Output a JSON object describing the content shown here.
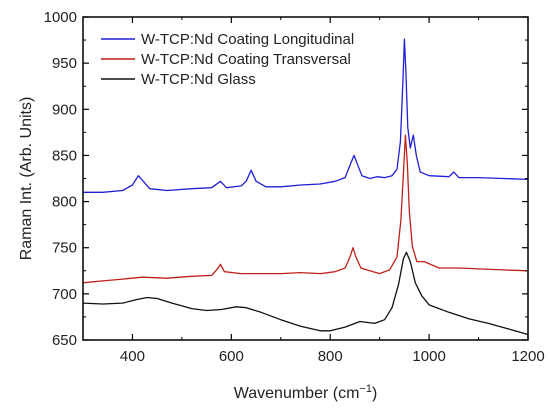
{
  "chart_data": {
    "type": "line",
    "xlabel": "Wavenumber (cm",
    "xlabel_sup": "−1",
    "xlabel_close": ")",
    "ylabel": "Raman Int. (Arb. Units)",
    "xlim": [
      300,
      1200
    ],
    "ylim": [
      650,
      1000
    ],
    "xticks": [
      400,
      600,
      800,
      1000,
      1200
    ],
    "yticks": [
      650,
      700,
      750,
      800,
      850,
      900,
      950,
      1000
    ],
    "grid": false,
    "legend_position": "top-left",
    "series": [
      {
        "name": "W-TCP:Nd Coating Longitudinal",
        "color": "#1f1fd6",
        "points": [
          [
            300,
            810
          ],
          [
            340,
            810
          ],
          [
            380,
            812
          ],
          [
            400,
            818
          ],
          [
            412,
            828
          ],
          [
            422,
            822
          ],
          [
            435,
            814
          ],
          [
            470,
            812
          ],
          [
            520,
            814
          ],
          [
            560,
            815
          ],
          [
            578,
            822
          ],
          [
            590,
            815
          ],
          [
            620,
            817
          ],
          [
            630,
            822
          ],
          [
            640,
            834
          ],
          [
            650,
            822
          ],
          [
            670,
            816
          ],
          [
            700,
            816
          ],
          [
            740,
            818
          ],
          [
            780,
            819
          ],
          [
            810,
            822
          ],
          [
            830,
            826
          ],
          [
            842,
            842
          ],
          [
            848,
            850
          ],
          [
            854,
            842
          ],
          [
            864,
            828
          ],
          [
            880,
            825
          ],
          [
            895,
            827
          ],
          [
            910,
            826
          ],
          [
            925,
            828
          ],
          [
            935,
            835
          ],
          [
            942,
            865
          ],
          [
            947,
            930
          ],
          [
            950,
            976
          ],
          [
            953,
            940
          ],
          [
            957,
            880
          ],
          [
            962,
            858
          ],
          [
            968,
            872
          ],
          [
            974,
            850
          ],
          [
            982,
            832
          ],
          [
            1000,
            828
          ],
          [
            1040,
            827
          ],
          [
            1050,
            832
          ],
          [
            1060,
            826
          ],
          [
            1100,
            826
          ],
          [
            1150,
            825
          ],
          [
            1200,
            824
          ]
        ]
      },
      {
        "name": "W-TCP:Nd Coating Transversal",
        "color": "#c0201a",
        "points": [
          [
            300,
            712
          ],
          [
            340,
            714
          ],
          [
            380,
            716
          ],
          [
            420,
            718
          ],
          [
            470,
            717
          ],
          [
            520,
            719
          ],
          [
            560,
            720
          ],
          [
            572,
            727
          ],
          [
            578,
            732
          ],
          [
            586,
            724
          ],
          [
            620,
            722
          ],
          [
            660,
            722
          ],
          [
            700,
            722
          ],
          [
            740,
            723
          ],
          [
            780,
            722
          ],
          [
            810,
            724
          ],
          [
            830,
            728
          ],
          [
            840,
            740
          ],
          [
            846,
            750
          ],
          [
            852,
            740
          ],
          [
            862,
            728
          ],
          [
            880,
            725
          ],
          [
            900,
            722
          ],
          [
            920,
            726
          ],
          [
            935,
            740
          ],
          [
            943,
            780
          ],
          [
            948,
            830
          ],
          [
            952,
            872
          ],
          [
            956,
            840
          ],
          [
            960,
            790
          ],
          [
            966,
            752
          ],
          [
            975,
            735
          ],
          [
            990,
            735
          ],
          [
            1020,
            728
          ],
          [
            1060,
            728
          ],
          [
            1100,
            727
          ],
          [
            1150,
            726
          ],
          [
            1200,
            725
          ]
        ]
      },
      {
        "name": "W-TCP:Nd Glass",
        "color": "#111111",
        "points": [
          [
            300,
            690
          ],
          [
            340,
            689
          ],
          [
            380,
            690
          ],
          [
            410,
            694
          ],
          [
            430,
            696
          ],
          [
            450,
            695
          ],
          [
            480,
            690
          ],
          [
            520,
            684
          ],
          [
            550,
            682
          ],
          [
            580,
            683
          ],
          [
            610,
            686
          ],
          [
            630,
            685
          ],
          [
            660,
            680
          ],
          [
            700,
            672
          ],
          [
            740,
            665
          ],
          [
            780,
            660
          ],
          [
            800,
            660
          ],
          [
            830,
            664
          ],
          [
            860,
            670
          ],
          [
            890,
            668
          ],
          [
            910,
            672
          ],
          [
            925,
            685
          ],
          [
            938,
            710
          ],
          [
            948,
            738
          ],
          [
            954,
            745
          ],
          [
            962,
            735
          ],
          [
            972,
            712
          ],
          [
            985,
            698
          ],
          [
            1000,
            688
          ],
          [
            1040,
            680
          ],
          [
            1080,
            673
          ],
          [
            1120,
            668
          ],
          [
            1160,
            662
          ],
          [
            1200,
            656
          ]
        ]
      }
    ]
  }
}
